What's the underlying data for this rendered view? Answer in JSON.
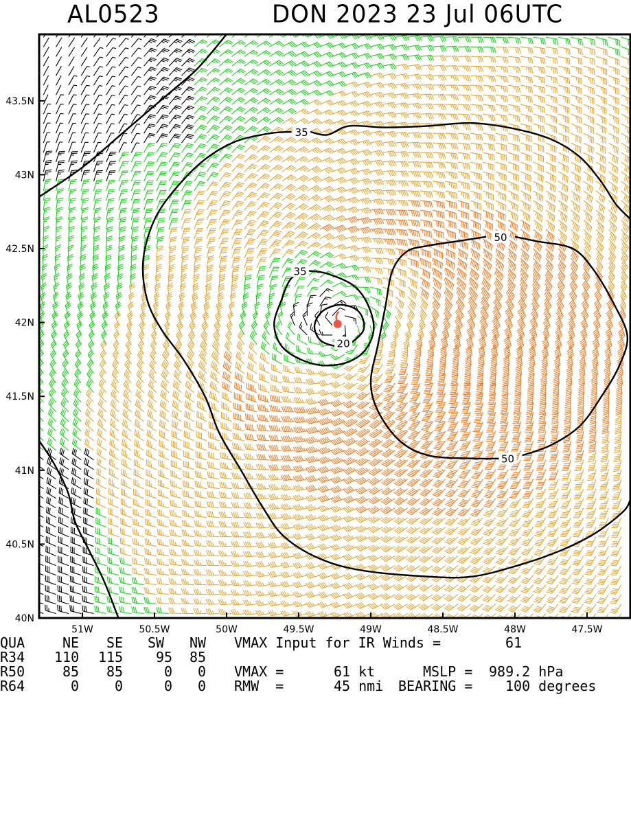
{
  "header": {
    "storm_id": "AL0523",
    "storm_title": "DON 2023 23 Jul 06UTC"
  },
  "colors": {
    "barb_weak": "#000000",
    "barb_ts": "#1fd11f",
    "barb_34_50": "#e0a93c",
    "barb_50_64": "#e8822e",
    "contour": "#000000",
    "center": "#e8584a"
  },
  "chart_data": {
    "type": "contour-wind-barb-map",
    "xlim": [
      -51.3,
      -47.2
    ],
    "ylim": [
      40.0,
      43.95
    ],
    "x_ticks": [
      {
        "value": -51.0,
        "label": "51W"
      },
      {
        "value": -50.5,
        "label": "50.5W"
      },
      {
        "value": -50.0,
        "label": "50W"
      },
      {
        "value": -49.5,
        "label": "49.5W"
      },
      {
        "value": -49.0,
        "label": "49W"
      },
      {
        "value": -48.5,
        "label": "48.5W"
      },
      {
        "value": -48.0,
        "label": "48W"
      },
      {
        "value": -47.5,
        "label": "47.5W"
      }
    ],
    "y_ticks": [
      {
        "value": 43.5,
        "label": "43.5N"
      },
      {
        "value": 43.0,
        "label": "43N"
      },
      {
        "value": 42.5,
        "label": "42.5N"
      },
      {
        "value": 42.0,
        "label": "42N"
      },
      {
        "value": 41.5,
        "label": "41.5N"
      },
      {
        "value": 41.0,
        "label": "41N"
      },
      {
        "value": 40.5,
        "label": "40.5N"
      },
      {
        "value": 40.0,
        "label": "40N"
      }
    ],
    "center": {
      "lon": -49.23,
      "lat": 41.99
    },
    "vmax_kt": 61,
    "rmw_nmi": 45,
    "contours": [
      {
        "label": "35",
        "label_at": [
          -49.48,
          43.29
        ],
        "points": [
          [
            -51.3,
            42.85
          ],
          [
            -51.0,
            43.05
          ],
          [
            -50.7,
            43.3
          ],
          [
            -50.4,
            43.55
          ],
          [
            -50.2,
            43.72
          ],
          [
            -50.0,
            43.95
          ]
        ]
      },
      {
        "label": "35",
        "label_at": [
          -49.48,
          43.29
        ],
        "points": [
          [
            -49.55,
            43.29
          ],
          [
            -49.7,
            43.28
          ],
          [
            -49.95,
            43.22
          ],
          [
            -50.18,
            43.08
          ],
          [
            -50.4,
            42.85
          ],
          [
            -50.52,
            42.65
          ],
          [
            -50.58,
            42.4
          ],
          [
            -50.55,
            42.15
          ],
          [
            -50.45,
            41.95
          ],
          [
            -50.3,
            41.75
          ],
          [
            -50.15,
            41.5
          ],
          [
            -50.05,
            41.25
          ],
          [
            -49.9,
            41.0
          ],
          [
            -49.75,
            40.75
          ],
          [
            -49.6,
            40.55
          ],
          [
            -49.35,
            40.4
          ],
          [
            -49.05,
            40.32
          ],
          [
            -48.6,
            40.28
          ],
          [
            -48.3,
            40.28
          ],
          [
            -48.0,
            40.35
          ],
          [
            -47.7,
            40.45
          ],
          [
            -47.45,
            40.57
          ],
          [
            -47.25,
            40.72
          ],
          [
            -47.2,
            40.8
          ]
        ]
      },
      {
        "label": "35",
        "label_at": [
          -49.48,
          43.29
        ],
        "points": [
          [
            -49.42,
            43.29
          ],
          [
            -49.3,
            43.27
          ],
          [
            -49.15,
            43.33
          ],
          [
            -48.9,
            43.32
          ],
          [
            -48.6,
            43.33
          ],
          [
            -48.3,
            43.35
          ],
          [
            -48.0,
            43.31
          ],
          [
            -47.75,
            43.24
          ],
          [
            -47.55,
            43.12
          ],
          [
            -47.4,
            42.95
          ],
          [
            -47.3,
            42.8
          ],
          [
            -47.2,
            42.7
          ]
        ]
      },
      {
        "label": "35",
        "label_at": [
          -49.49,
          42.35
        ],
        "points": [
          [
            -49.43,
            42.35
          ],
          [
            -49.3,
            42.33
          ],
          [
            -49.12,
            42.25
          ],
          [
            -49.02,
            42.12
          ],
          [
            -48.98,
            41.95
          ],
          [
            -49.05,
            41.8
          ],
          [
            -49.2,
            41.72
          ],
          [
            -49.4,
            41.72
          ],
          [
            -49.6,
            41.82
          ],
          [
            -49.67,
            41.98
          ],
          [
            -49.62,
            42.15
          ],
          [
            -49.55,
            42.3
          ]
        ]
      },
      {
        "label": "20",
        "label_at": [
          -49.19,
          41.86
        ],
        "points": [
          [
            -49.15,
            41.85
          ],
          [
            -49.05,
            41.95
          ],
          [
            -49.08,
            42.07
          ],
          [
            -49.2,
            42.12
          ],
          [
            -49.33,
            42.08
          ],
          [
            -49.39,
            41.98
          ],
          [
            -49.35,
            41.88
          ],
          [
            -49.24,
            41.84
          ]
        ]
      },
      {
        "label": "50",
        "label_at": [
          -48.1,
          42.58
        ],
        "points": [
          [
            -48.2,
            42.58
          ],
          [
            -48.4,
            42.55
          ],
          [
            -48.6,
            42.52
          ],
          [
            -48.75,
            42.48
          ],
          [
            -48.85,
            42.35
          ],
          [
            -48.9,
            42.1
          ],
          [
            -48.95,
            41.85
          ],
          [
            -49.0,
            41.6
          ],
          [
            -48.95,
            41.4
          ],
          [
            -48.8,
            41.2
          ],
          [
            -48.6,
            41.1
          ],
          [
            -48.3,
            41.08
          ],
          [
            -48.05,
            41.08
          ]
        ]
      },
      {
        "label": "50",
        "label_at": [
          -48.1,
          42.58
        ],
        "points": [
          [
            -48.0,
            42.58
          ],
          [
            -47.85,
            42.55
          ],
          [
            -47.6,
            42.5
          ],
          [
            -47.45,
            42.35
          ],
          [
            -47.3,
            42.1
          ],
          [
            -47.22,
            41.9
          ],
          [
            -47.28,
            41.7
          ],
          [
            -47.4,
            41.5
          ],
          [
            -47.55,
            41.3
          ],
          [
            -47.75,
            41.17
          ],
          [
            -47.95,
            41.1
          ]
        ]
      },
      {
        "label": "50",
        "label_at": [
          -48.05,
          41.08
        ],
        "points": []
      },
      {
        "label": "",
        "label_at": null,
        "points": [
          [
            -51.3,
            41.2
          ],
          [
            -51.2,
            41.05
          ],
          [
            -51.1,
            40.85
          ],
          [
            -51.05,
            40.65
          ],
          [
            -50.95,
            40.45
          ],
          [
            -50.85,
            40.25
          ],
          [
            -50.75,
            40.0
          ]
        ]
      }
    ]
  },
  "info": {
    "header_row": [
      "QUA",
      "NE",
      "SE",
      "SW",
      "NW"
    ],
    "vmax_input_label": "VMAX Input for IR Winds =",
    "vmax_input_value": "61",
    "r34": [
      "R34",
      "110",
      "115",
      "95",
      "85"
    ],
    "r50": [
      "R50",
      "85",
      "85",
      "0",
      "0"
    ],
    "r64": [
      "R64",
      "0",
      "0",
      "0",
      "0"
    ],
    "vmax_label": "VMAX =",
    "vmax_value": "61 kt",
    "mslp_label": "MSLP =",
    "mslp_value": "989.2 hPa",
    "rmw_label": "RMW  =",
    "rmw_value": "45 nmi",
    "bearing_label": "BEARING =",
    "bearing_value": "100 degrees"
  }
}
